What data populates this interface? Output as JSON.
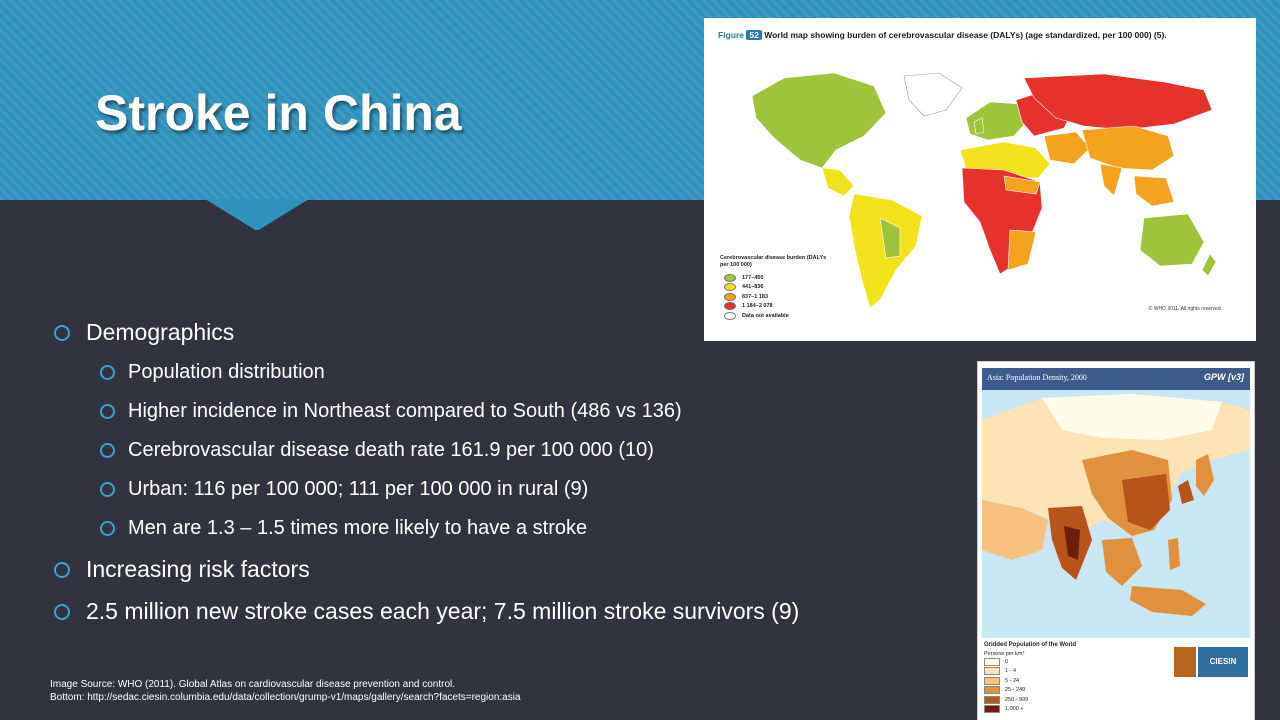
{
  "slide": {
    "title": "Stroke in China",
    "bullets": [
      {
        "level": 1,
        "text": "Demographics"
      },
      {
        "level": 2,
        "text": "Population distribution"
      },
      {
        "level": 2,
        "text": "Higher incidence in Northeast compared to South (486 vs 136)"
      },
      {
        "level": 2,
        "text": "Cerebrovascular disease  death rate 161.9 per 100 000 (10)"
      },
      {
        "level": 2,
        "text": "Urban: 116 per 100 000; 111 per 100 000 in rural (9)"
      },
      {
        "level": 2,
        "text": "Men are 1.3 – 1.5 times more likely to have a stroke"
      },
      {
        "level": 1,
        "text": "Increasing risk factors"
      },
      {
        "level": 1,
        "text": "2.5 million new stroke cases each year; 7.5 million stroke survivors (9)"
      }
    ],
    "source_line1": "Image Source: WHO (2011). Global Atlas on cardiovascular disease prevention and control.",
    "source_line2": "Bottom:  http://sedac.ciesin.columbia.edu/data/collection/grump-v1/maps/gallery/search?facets=region:asia"
  },
  "figure_who": {
    "label": "Figure",
    "number": "52",
    "caption": "World map showing burden of cerebrovascular disease (DALYs) (age standardized, per 100 000) (5).",
    "legend_title": "Cerebrovascular disease burden (DALYs per 100 000)",
    "legend": [
      {
        "label": "177–450",
        "color": "#9dc43b"
      },
      {
        "label": "441–836",
        "color": "#f2e21c"
      },
      {
        "label": "837–1 183",
        "color": "#f4a31f"
      },
      {
        "label": "1 184–2 078",
        "color": "#e7312b"
      },
      {
        "label": "Data not available",
        "color": "#ffffff"
      }
    ],
    "copyright": "© WHO 2011. All rights reserved."
  },
  "figure_asia": {
    "header_left": "Asia: Population Density, 2000",
    "header_right": "GPW [v3]",
    "legend_title": "Gridded Population of the World",
    "legend_subtitle": "Persons per km²",
    "legend": [
      {
        "label": "0",
        "color": "#fffbe8"
      },
      {
        "label": "1 - 4",
        "color": "#fbe3b4"
      },
      {
        "label": "5 - 24",
        "color": "#f6c27e"
      },
      {
        "label": "25 - 249",
        "color": "#e1913d"
      },
      {
        "label": "250 - 999",
        "color": "#b8541a"
      },
      {
        "label": "1,000 +",
        "color": "#6e1f0a"
      }
    ],
    "logo": "CIESIN"
  }
}
